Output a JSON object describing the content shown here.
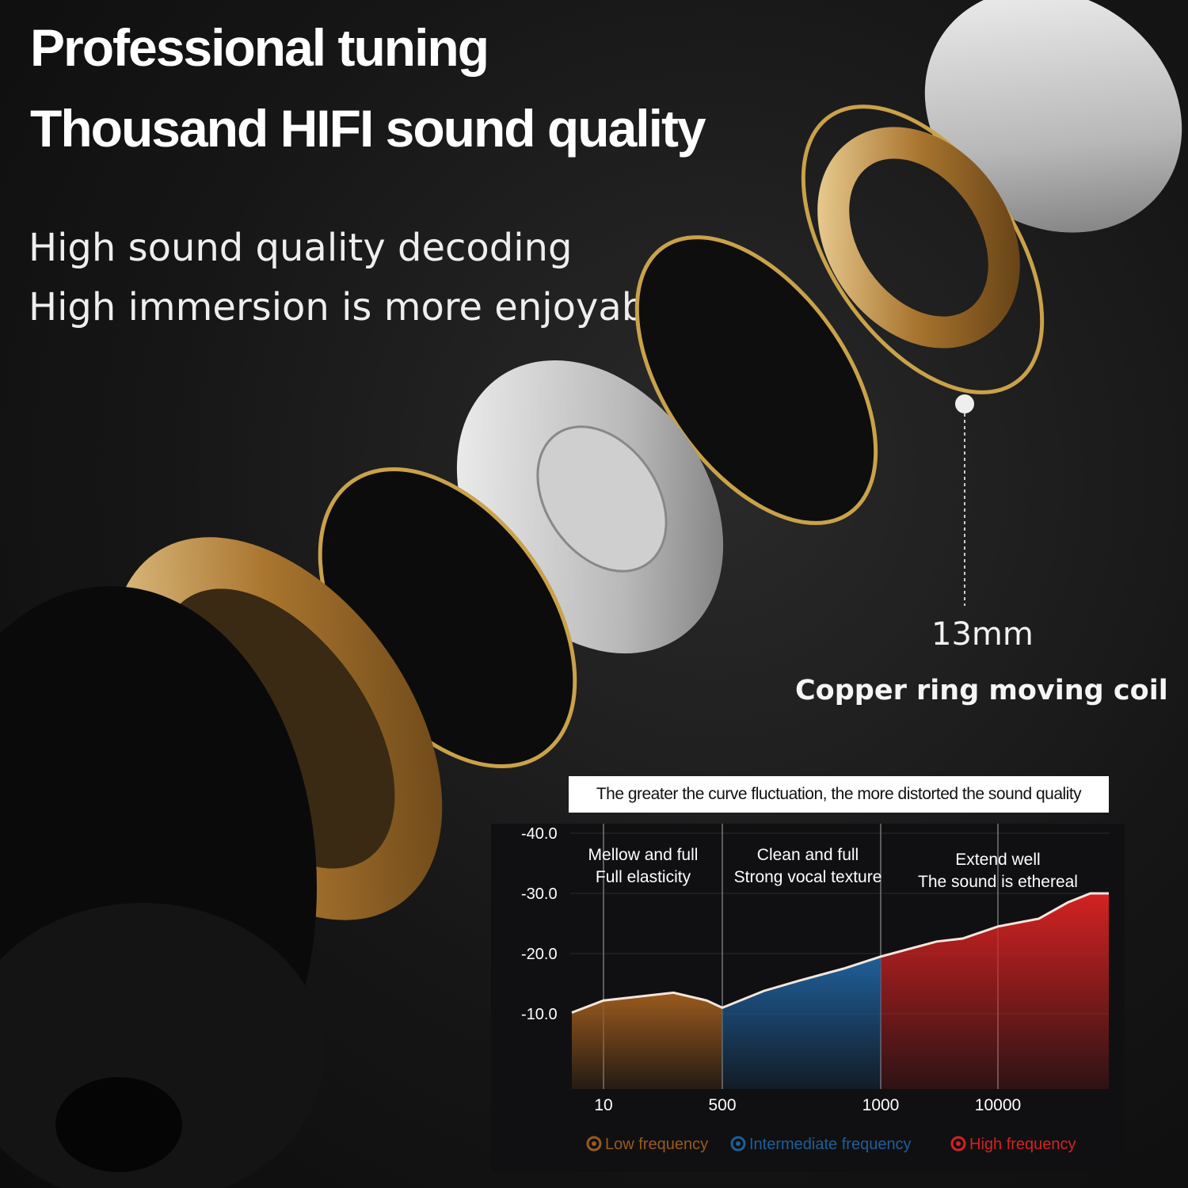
{
  "headline": {
    "line1": "Professional tuning",
    "line2": "Thousand HIFI sound quality"
  },
  "subheadline": {
    "line1": "High sound quality decoding",
    "line2": "High immersion is more enjoyable"
  },
  "driver": {
    "size": "13mm",
    "label": "Copper ring moving coil"
  },
  "colors": {
    "low": "#9a5a1e",
    "mid": "#1f5f9a",
    "high": "#d42222",
    "gold": "#c9a24a"
  },
  "chart_data": {
    "type": "area",
    "title": "The greater the curve fluctuation, the more distorted the sound quality",
    "y_ticks": [
      "-40.0",
      "-30.0",
      "-20.0",
      "-10.0"
    ],
    "ylim": [
      -40,
      -10
    ],
    "x_ticks": [
      "10",
      "500",
      "1000",
      "10000"
    ],
    "grid": true,
    "regions": [
      {
        "name": "Low frequency",
        "line1": "Mellow and full",
        "line2": "Full elasticity",
        "color": "#9a5a1e"
      },
      {
        "name": "Intermediate frequency",
        "line1": "Clean and full",
        "line2": "Strong vocal texture",
        "color": "#1f5f9a"
      },
      {
        "name": "High frequency",
        "line1": "Extend well",
        "line2": "The sound is ethereal",
        "color": "#d42222"
      }
    ],
    "legend_placement": "bottom",
    "points": [
      [
        2,
        -10.2
      ],
      [
        10,
        -12.2
      ],
      [
        100,
        -13.5
      ],
      [
        300,
        -12.2
      ],
      [
        500,
        -11
      ],
      [
        600,
        -13.8
      ],
      [
        700,
        -15.5
      ],
      [
        850,
        -17.5
      ],
      [
        1000,
        -19.5
      ],
      [
        3000,
        -22
      ],
      [
        5000,
        -22.5
      ],
      [
        10000,
        -24.5
      ],
      [
        15000,
        -25.8
      ],
      [
        20000,
        -28.5
      ],
      [
        25000,
        -30
      ],
      [
        30000,
        -30
      ]
    ]
  }
}
